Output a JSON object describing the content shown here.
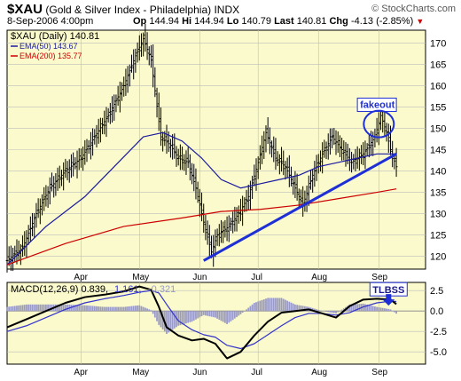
{
  "header": {
    "ticker": "$XAU",
    "index_name": "(Gold & Silver Index - Philadelphia)",
    "exchange": "INDX",
    "brand": "© StockCharts.com",
    "date": "8-Sep-2006 4:00pm",
    "open_label": "Op",
    "open": "144.94",
    "high_label": "Hi",
    "high": "144.94",
    "low_label": "Lo",
    "low": "140.79",
    "last_label": "Last",
    "last": "140.81",
    "chg_label": "Chg",
    "chg": "-4.13 (-2.85%)"
  },
  "colors": {
    "panel_bg": "#fafacc",
    "price": "#000000",
    "ema50": "#1a1aa0",
    "ema200": "#cc0000",
    "trendline": "#1e2fd6",
    "annotation": "#1e2fd6",
    "histogram": "#9a9ac8",
    "macd_signal": "#3333cc"
  },
  "chart_data": [
    {
      "type": "line",
      "legend": [
        {
          "text": "$XAU (Daily) 140.81",
          "color": "#000000"
        },
        {
          "text": "EMA(50) 143.67",
          "color": "#1a1aa0"
        },
        {
          "text": "EMA(200) 135.77",
          "color": "#cc0000"
        }
      ],
      "legend_placement": "top-left",
      "y_axis_side": "right",
      "ylim": [
        117,
        173
      ],
      "yticks": [
        120,
        125,
        130,
        135,
        140,
        145,
        150,
        155,
        160,
        165,
        170
      ],
      "xlim": [
        0,
        215
      ],
      "xticks": [
        {
          "label": "Apr",
          "day": 38
        },
        {
          "label": "May",
          "day": 68
        },
        {
          "label": "Jun",
          "day": 99
        },
        {
          "label": "Jul",
          "day": 129
        },
        {
          "label": "Aug",
          "day": 160
        },
        {
          "label": "Sep",
          "day": 191
        }
      ],
      "grid": true,
      "series": [
        {
          "name": "$XAU",
          "style": "ohlc-bars",
          "x": [
            0,
            8,
            15,
            22,
            30,
            38,
            45,
            52,
            60,
            66,
            70,
            74,
            79,
            84,
            88,
            93,
            97,
            101,
            105,
            108,
            114,
            119,
            124,
            129,
            133,
            138,
            143,
            148,
            152,
            157,
            162,
            167,
            172,
            177,
            183,
            189,
            192,
            195,
            197,
            200
          ],
          "y": [
            119,
            122,
            130,
            136,
            140,
            143,
            148,
            153,
            160,
            167,
            171,
            166,
            148,
            146,
            143,
            142,
            136,
            128,
            121,
            125,
            127,
            130,
            134,
            142,
            149,
            143,
            141,
            136,
            132,
            139,
            144,
            148,
            145,
            142,
            144,
            148,
            153,
            149,
            145,
            141
          ]
        },
        {
          "name": "EMA(50)",
          "x": [
            0,
            20,
            40,
            55,
            70,
            80,
            90,
            100,
            110,
            120,
            130,
            140,
            150,
            160,
            170,
            180,
            190,
            200
          ],
          "y": [
            118,
            127,
            134,
            141,
            148,
            149,
            147,
            143,
            138,
            136,
            137,
            138,
            139,
            141,
            142,
            143,
            144,
            144
          ]
        },
        {
          "name": "EMA(200)",
          "x": [
            0,
            30,
            60,
            90,
            110,
            130,
            150,
            170,
            190,
            200
          ],
          "y": [
            118,
            123,
            127,
            129,
            130.5,
            131,
            132,
            133.5,
            135,
            135.8
          ]
        }
      ],
      "trendline": {
        "x": [
          101,
          200
        ],
        "y": [
          119,
          144
        ]
      },
      "annotations": [
        {
          "text": "fakeout",
          "x": 190,
          "y": 155,
          "style": "box"
        },
        {
          "shape": "circle",
          "x": 191,
          "y": 151
        }
      ]
    },
    {
      "type": "line",
      "legend": [
        {
          "text": "MACD(12,26,9) 0.839,",
          "color": "#000000"
        },
        {
          "text": "1.161,",
          "color": "#3333cc"
        },
        {
          "text": "-0.321",
          "color": "#9a9ac8"
        }
      ],
      "y_axis_side": "right",
      "ylim": [
        -6.5,
        3.5
      ],
      "yticks": [
        -5.0,
        -2.5,
        0.0,
        2.5
      ],
      "grid": true,
      "series": [
        {
          "name": "MACD",
          "x": [
            0,
            10,
            20,
            30,
            40,
            50,
            60,
            68,
            74,
            78,
            82,
            88,
            95,
            101,
            107,
            113,
            120,
            127,
            134,
            141,
            148,
            155,
            162,
            169,
            176,
            183,
            190,
            197,
            200
          ],
          "y": [
            -2,
            -1,
            0,
            1,
            1.7,
            2,
            2.4,
            3,
            2.6,
            0.5,
            -2,
            -3,
            -3.6,
            -3.4,
            -4,
            -5.8,
            -5,
            -3,
            -1.3,
            -0.2,
            0,
            0.2,
            -0.3,
            -0.8,
            0.6,
            1.4,
            1.5,
            1.4,
            0.84
          ]
        },
        {
          "name": "Signal",
          "x": [
            0,
            10,
            20,
            30,
            40,
            50,
            60,
            68,
            74,
            78,
            82,
            88,
            95,
            101,
            107,
            113,
            120,
            127,
            134,
            141,
            148,
            155,
            162,
            169,
            176,
            183,
            190,
            197,
            200
          ],
          "y": [
            -2.5,
            -1.8,
            -0.8,
            0.2,
            1,
            1.5,
            1.9,
            2.3,
            2.5,
            2.2,
            0.8,
            -1.2,
            -2.3,
            -2.9,
            -3.2,
            -4.2,
            -4.6,
            -4,
            -2.9,
            -1.8,
            -0.8,
            -0.3,
            -0.3,
            -0.5,
            -0.2,
            0.5,
            1,
            1.2,
            1.16
          ]
        },
        {
          "name": "Histogram",
          "style": "bars",
          "x": [
            0,
            10,
            20,
            30,
            40,
            50,
            60,
            68,
            74,
            78,
            82,
            88,
            95,
            101,
            107,
            113,
            120,
            127,
            134,
            141,
            148,
            155,
            162,
            169,
            176,
            183,
            190,
            197,
            200
          ],
          "y": [
            0.5,
            0.8,
            0.8,
            0.8,
            0.7,
            0.5,
            0.5,
            0.7,
            0.1,
            -1.7,
            -2.8,
            -1.8,
            -1.3,
            -0.5,
            -0.8,
            -1.6,
            -0.4,
            1,
            1.6,
            1.6,
            0.8,
            0.5,
            0,
            -0.3,
            0.8,
            0.9,
            0.5,
            0.2,
            -0.32
          ]
        }
      ],
      "annotations": [
        {
          "text": "TLBSS",
          "x": 196,
          "y": 2.5,
          "style": "box"
        },
        {
          "shape": "arrow-down",
          "x": 196,
          "y": 1.2
        }
      ]
    }
  ]
}
